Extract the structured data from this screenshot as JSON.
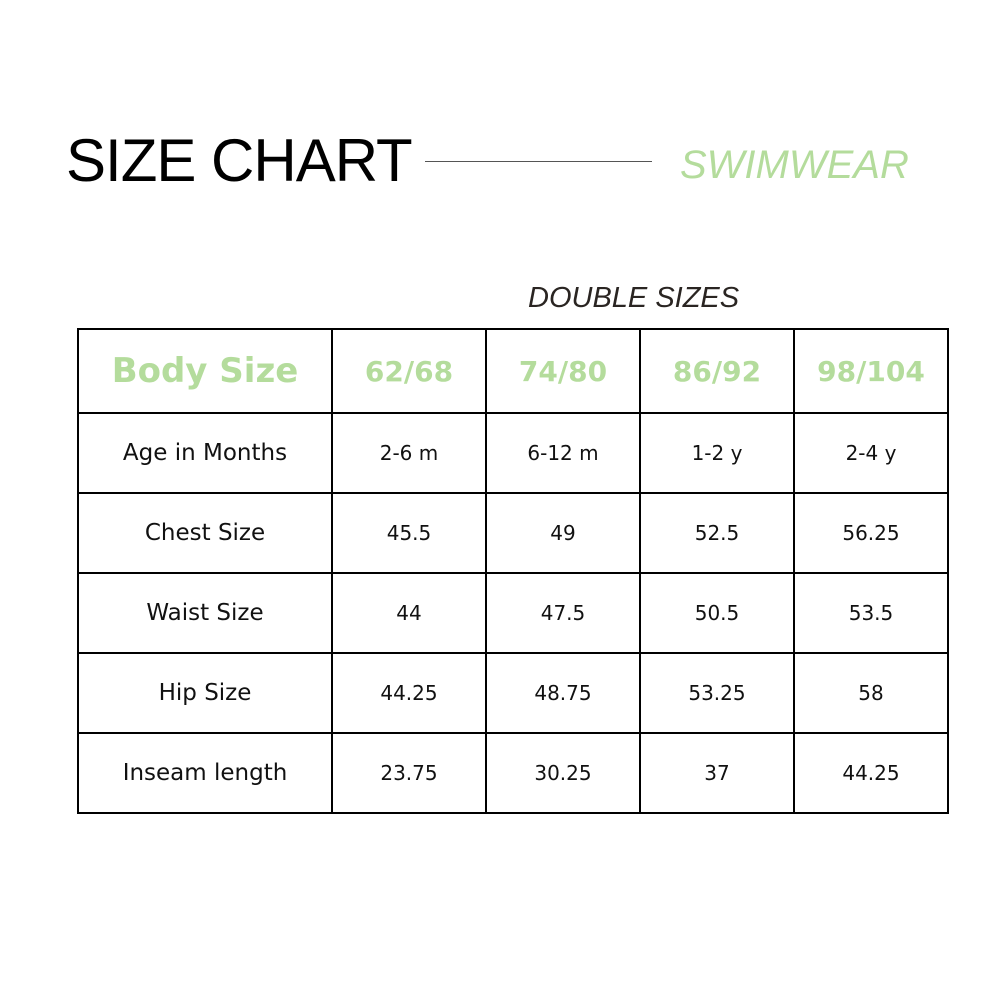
{
  "title": "SIZE CHART",
  "subtitle": "SWIMWEAR",
  "section": "DOUBLE SIZES",
  "accent_color": "#b4dc9c",
  "table": {
    "header": [
      "Body Size",
      "62/68",
      "74/80",
      "86/92",
      "98/104"
    ],
    "rows": [
      [
        "Age in Months",
        "2-6 m",
        "6-12 m",
        "1-2 y",
        "2-4 y"
      ],
      [
        "Chest Size",
        "45.5",
        "49",
        "52.5",
        "56.25"
      ],
      [
        "Waist Size",
        "44",
        "47.5",
        "50.5",
        "53.5"
      ],
      [
        "Hip Size",
        "44.25",
        "48.75",
        "53.25",
        "58"
      ],
      [
        "Inseam length",
        "23.75",
        "30.25",
        "37",
        "44.25"
      ]
    ]
  }
}
